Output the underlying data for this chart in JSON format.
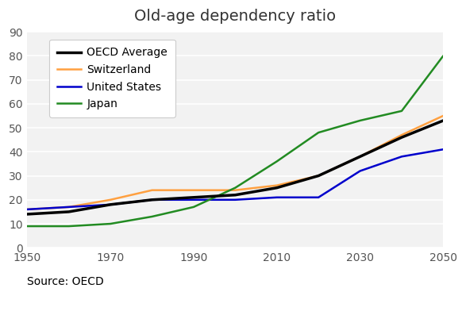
{
  "title": "Old-age dependency ratio",
  "source_text": "Source: OECD",
  "years": [
    1950,
    1960,
    1970,
    1980,
    1990,
    2000,
    2010,
    2020,
    2030,
    2040,
    2050
  ],
  "oecd_average": [
    14,
    15,
    18,
    20,
    21,
    22,
    25,
    30,
    38,
    46,
    53
  ],
  "switzerland": [
    16,
    17,
    20,
    24,
    24,
    24,
    26,
    30,
    38,
    47,
    55
  ],
  "united_states": [
    16,
    17,
    18,
    20,
    20,
    20,
    21,
    21,
    32,
    38,
    41
  ],
  "japan": [
    9,
    9,
    10,
    13,
    17,
    25,
    36,
    48,
    53,
    57,
    80
  ],
  "colors": {
    "oecd_average": "#000000",
    "switzerland": "#FFA040",
    "united_states": "#0000CC",
    "japan": "#228B22"
  },
  "line_widths": {
    "oecd_average": 2.5,
    "switzerland": 1.8,
    "united_states": 1.8,
    "japan": 1.8
  },
  "ylim": [
    0,
    90
  ],
  "yticks": [
    0,
    10,
    20,
    30,
    40,
    50,
    60,
    70,
    80,
    90
  ],
  "xticks": [
    1950,
    1970,
    1990,
    2010,
    2030,
    2050
  ],
  "background_color": "#ffffff",
  "plot_bg_color": "#f2f2f2",
  "legend_labels": [
    "OECD Average",
    "Switzerland",
    "United States",
    "Japan"
  ],
  "legend_keys": [
    "oecd_average",
    "switzerland",
    "united_states",
    "japan"
  ],
  "title_fontsize": 14,
  "tick_fontsize": 10,
  "legend_fontsize": 10,
  "source_fontsize": 10
}
